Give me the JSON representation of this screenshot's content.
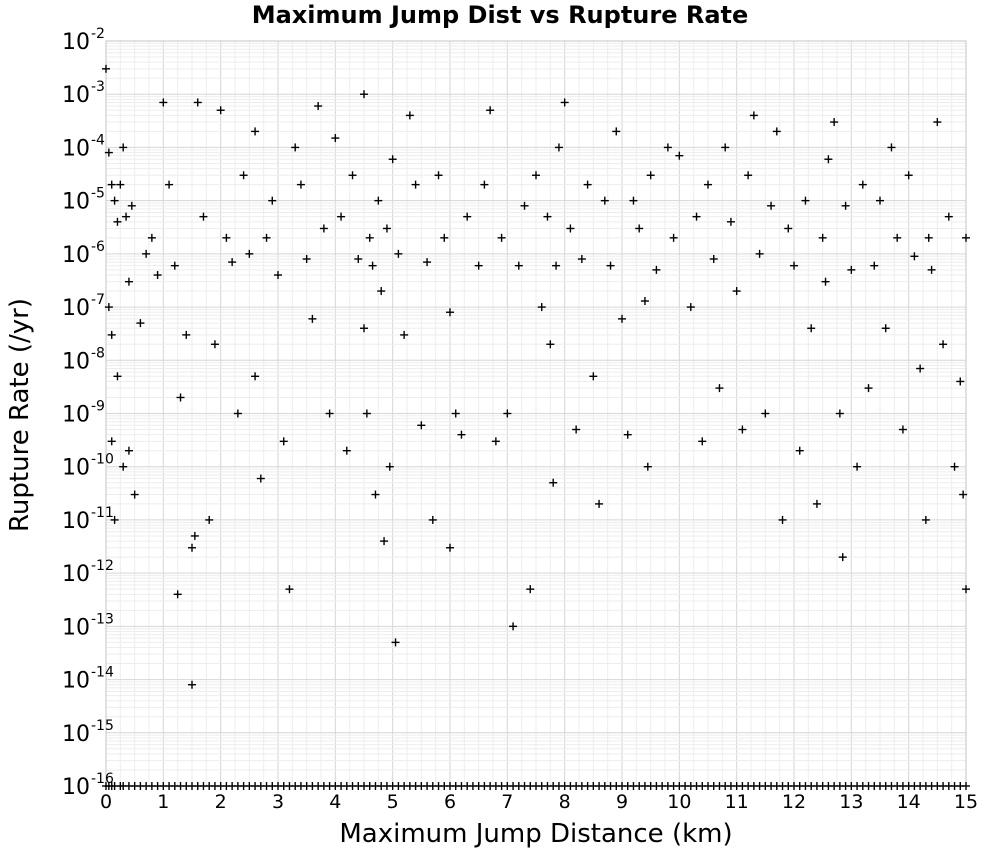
{
  "chart_data": {
    "type": "scatter",
    "title": "Maximum Jump Dist vs Rupture Rate",
    "xlabel": "Maximum Jump Distance (km)",
    "ylabel": "Rupture Rate (/yr)",
    "xlim": [
      0,
      15
    ],
    "ylim": [
      1e-16,
      0.01
    ],
    "x_scale": "linear",
    "y_scale": "log",
    "x_ticks": [
      0,
      1,
      2,
      3,
      4,
      5,
      6,
      7,
      8,
      9,
      10,
      11,
      12,
      13,
      14,
      15
    ],
    "y_ticks": [
      {
        "base": "10",
        "exp": "-16"
      },
      {
        "base": "10",
        "exp": "-15"
      },
      {
        "base": "10",
        "exp": "-14"
      },
      {
        "base": "10",
        "exp": "-13"
      },
      {
        "base": "10",
        "exp": "-12"
      },
      {
        "base": "10",
        "exp": "-11"
      },
      {
        "base": "10",
        "exp": "-10"
      },
      {
        "base": "10",
        "exp": "-9"
      },
      {
        "base": "10",
        "exp": "-8"
      },
      {
        "base": "10",
        "exp": "-7"
      },
      {
        "base": "10",
        "exp": "-6"
      },
      {
        "base": "10",
        "exp": "-5"
      },
      {
        "base": "10",
        "exp": "-4"
      },
      {
        "base": "10",
        "exp": "-3"
      },
      {
        "base": "10",
        "exp": "-2"
      }
    ],
    "grid": true,
    "marker": "+",
    "marker_color": "#000000",
    "series": [
      {
        "points": [
          [
            0.0,
            0.003
          ],
          [
            0.05,
            8e-05
          ],
          [
            0.1,
            2e-05
          ],
          [
            0.15,
            1e-05
          ],
          [
            0.2,
            4e-06
          ],
          [
            0.25,
            2e-05
          ],
          [
            0.3,
            0.0001
          ],
          [
            0.35,
            5e-06
          ],
          [
            0.4,
            3e-07
          ],
          [
            0.45,
            8e-06
          ],
          [
            0.05,
            1e-07
          ],
          [
            0.1,
            3e-08
          ],
          [
            0.2,
            5e-09
          ],
          [
            0.3,
            1e-10
          ],
          [
            0.1,
            3e-10
          ],
          [
            0.15,
            1e-11
          ],
          [
            0.4,
            2e-10
          ],
          [
            0.5,
            3e-11
          ],
          [
            0.6,
            5e-08
          ],
          [
            0.7,
            1e-06
          ],
          [
            0.8,
            2e-06
          ],
          [
            0.9,
            4e-07
          ],
          [
            1.0,
            0.0007
          ],
          [
            1.1,
            2e-05
          ],
          [
            1.2,
            6e-07
          ],
          [
            1.25,
            4e-13
          ],
          [
            1.3,
            2e-09
          ],
          [
            1.4,
            3e-08
          ],
          [
            1.5,
            8e-15
          ],
          [
            1.5,
            3e-12
          ],
          [
            1.55,
            5e-12
          ],
          [
            1.6,
            0.0007
          ],
          [
            1.7,
            5e-06
          ],
          [
            1.8,
            1e-11
          ],
          [
            1.9,
            2e-08
          ],
          [
            2.0,
            0.0005
          ],
          [
            2.1,
            2e-06
          ],
          [
            2.2,
            7e-07
          ],
          [
            2.3,
            1e-09
          ],
          [
            2.4,
            3e-05
          ],
          [
            2.5,
            1e-06
          ],
          [
            2.6,
            0.0002
          ],
          [
            2.6,
            5e-09
          ],
          [
            2.7,
            6e-11
          ],
          [
            2.8,
            2e-06
          ],
          [
            2.9,
            1e-05
          ],
          [
            3.0,
            4e-07
          ],
          [
            3.1,
            3e-10
          ],
          [
            3.2,
            5e-13
          ],
          [
            3.3,
            0.0001
          ],
          [
            3.4,
            2e-05
          ],
          [
            3.5,
            8e-07
          ],
          [
            3.6,
            6e-08
          ],
          [
            3.7,
            0.0006
          ],
          [
            3.8,
            3e-06
          ],
          [
            3.9,
            1e-09
          ],
          [
            4.0,
            0.00015
          ],
          [
            4.1,
            5e-06
          ],
          [
            4.2,
            2e-10
          ],
          [
            4.3,
            3e-05
          ],
          [
            4.4,
            8e-07
          ],
          [
            4.5,
            0.001
          ],
          [
            4.5,
            4e-08
          ],
          [
            4.55,
            1e-09
          ],
          [
            4.6,
            2e-06
          ],
          [
            4.65,
            6e-07
          ],
          [
            4.7,
            3e-11
          ],
          [
            4.75,
            1e-05
          ],
          [
            4.8,
            2e-07
          ],
          [
            4.85,
            4e-12
          ],
          [
            4.9,
            3e-06
          ],
          [
            4.95,
            1e-10
          ],
          [
            5.0,
            6e-05
          ],
          [
            5.05,
            5e-14
          ],
          [
            5.1,
            1e-06
          ],
          [
            5.2,
            3e-08
          ],
          [
            5.3,
            0.0004
          ],
          [
            5.4,
            2e-05
          ],
          [
            5.5,
            6e-10
          ],
          [
            5.6,
            7e-07
          ],
          [
            5.7,
            1e-11
          ],
          [
            5.8,
            3e-05
          ],
          [
            5.9,
            2e-06
          ],
          [
            6.0,
            8e-08
          ],
          [
            6.0,
            3e-12
          ],
          [
            6.1,
            1e-09
          ],
          [
            6.2,
            4e-10
          ],
          [
            6.3,
            5e-06
          ],
          [
            6.5,
            6e-07
          ],
          [
            6.6,
            2e-05
          ],
          [
            6.7,
            0.0005
          ],
          [
            6.8,
            3e-10
          ],
          [
            6.9,
            2e-06
          ],
          [
            7.0,
            1e-09
          ],
          [
            7.1,
            1e-13
          ],
          [
            7.2,
            6e-07
          ],
          [
            7.3,
            8e-06
          ],
          [
            7.4,
            5e-13
          ],
          [
            7.5,
            3e-05
          ],
          [
            7.6,
            1e-07
          ],
          [
            7.7,
            5e-06
          ],
          [
            7.75,
            2e-08
          ],
          [
            7.8,
            5e-11
          ],
          [
            7.85,
            6e-07
          ],
          [
            7.9,
            0.0001
          ],
          [
            8.0,
            0.0007
          ],
          [
            8.1,
            3e-06
          ],
          [
            8.2,
            5e-10
          ],
          [
            8.3,
            8e-07
          ],
          [
            8.4,
            2e-05
          ],
          [
            8.5,
            5e-09
          ],
          [
            8.6,
            2e-11
          ],
          [
            8.7,
            1e-05
          ],
          [
            8.8,
            6e-07
          ],
          [
            8.9,
            0.0002
          ],
          [
            9.0,
            6e-08
          ],
          [
            9.1,
            4e-10
          ],
          [
            9.2,
            1e-05
          ],
          [
            9.3,
            3e-06
          ],
          [
            9.4,
            1.3e-07
          ],
          [
            9.45,
            1e-10
          ],
          [
            9.5,
            3e-05
          ],
          [
            9.6,
            5e-07
          ],
          [
            9.8,
            0.0001
          ],
          [
            9.9,
            2e-06
          ],
          [
            10.0,
            7e-05
          ],
          [
            10.2,
            1e-07
          ],
          [
            10.3,
            5e-06
          ],
          [
            10.4,
            3e-10
          ],
          [
            10.5,
            2e-05
          ],
          [
            10.6,
            8e-07
          ],
          [
            10.7,
            3e-09
          ],
          [
            10.8,
            0.0001
          ],
          [
            10.9,
            4e-06
          ],
          [
            11.0,
            2e-07
          ],
          [
            11.1,
            5e-10
          ],
          [
            11.2,
            3e-05
          ],
          [
            11.3,
            0.0004
          ],
          [
            11.4,
            1e-06
          ],
          [
            11.5,
            1e-09
          ],
          [
            11.6,
            8e-06
          ],
          [
            11.7,
            0.0002
          ],
          [
            11.8,
            1e-11
          ],
          [
            11.9,
            3e-06
          ],
          [
            12.0,
            6e-07
          ],
          [
            12.1,
            2e-10
          ],
          [
            12.2,
            1e-05
          ],
          [
            12.3,
            4e-08
          ],
          [
            12.4,
            2e-11
          ],
          [
            12.5,
            2e-06
          ],
          [
            12.55,
            3e-07
          ],
          [
            12.6,
            6e-05
          ],
          [
            12.7,
            0.0003
          ],
          [
            12.8,
            1e-09
          ],
          [
            12.85,
            2e-12
          ],
          [
            12.9,
            8e-06
          ],
          [
            13.0,
            5e-07
          ],
          [
            13.1,
            1e-10
          ],
          [
            13.2,
            2e-05
          ],
          [
            13.3,
            3e-09
          ],
          [
            13.4,
            6e-07
          ],
          [
            13.5,
            1e-05
          ],
          [
            13.6,
            4e-08
          ],
          [
            13.7,
            0.0001
          ],
          [
            13.8,
            2e-06
          ],
          [
            13.9,
            5e-10
          ],
          [
            14.0,
            3e-05
          ],
          [
            14.1,
            9e-07
          ],
          [
            14.2,
            7e-09
          ],
          [
            14.3,
            1e-11
          ],
          [
            14.35,
            2e-06
          ],
          [
            14.4,
            5e-07
          ],
          [
            14.5,
            0.0003
          ],
          [
            14.6,
            2e-08
          ],
          [
            14.7,
            5e-06
          ],
          [
            14.8,
            1e-10
          ],
          [
            14.9,
            4e-09
          ],
          [
            15.0,
            5e-13
          ],
          [
            15.0,
            2e-06
          ],
          [
            14.95,
            3e-11
          ]
        ]
      }
    ],
    "baseline_points_value": 1e-16,
    "baseline_points_x": [
      0.0,
      0.05,
      0.1,
      0.15,
      0.25,
      0.3,
      0.4,
      0.5,
      0.6,
      0.7,
      0.8,
      0.9,
      1.0,
      1.1,
      1.2,
      1.3,
      1.4,
      1.5,
      1.6,
      1.7,
      1.8,
      1.9,
      2.0,
      2.1,
      2.2,
      2.3,
      2.4,
      2.5,
      2.6,
      2.7,
      2.8,
      2.9,
      3.0,
      3.1,
      3.2,
      3.3,
      3.4,
      3.5,
      3.6,
      3.7,
      3.8,
      3.9,
      4.0,
      4.1,
      4.2,
      4.3,
      4.4,
      4.5,
      4.6,
      4.7,
      4.8,
      4.9,
      5.0,
      5.1,
      5.2,
      5.3,
      5.4,
      5.5,
      5.6,
      5.7,
      5.8,
      5.9,
      6.0,
      6.1,
      6.2,
      6.3,
      6.4,
      6.5,
      6.6,
      6.7,
      6.8,
      6.9,
      7.0,
      7.1,
      7.2,
      7.3,
      7.4,
      7.5,
      7.6,
      7.7,
      7.8,
      7.9,
      8.0,
      8.1,
      8.2,
      8.3,
      8.4,
      8.5,
      8.6,
      8.7,
      8.8,
      8.9,
      9.0,
      9.1,
      9.2,
      9.3,
      9.4,
      9.5,
      9.6,
      9.7,
      9.8,
      9.9,
      10.0,
      10.1,
      10.2,
      10.3,
      10.4,
      10.5,
      10.6,
      10.7,
      10.8,
      10.9,
      11.0,
      11.1,
      11.2,
      11.3,
      11.4,
      11.5,
      11.6,
      11.7,
      11.8,
      11.9,
      12.0,
      12.1,
      12.2,
      12.3,
      12.4,
      12.5,
      12.6,
      12.7,
      12.8,
      12.9,
      13.0,
      13.1,
      13.2,
      13.3,
      13.4,
      13.5,
      13.6,
      13.7,
      13.8,
      13.9,
      14.0,
      14.1,
      14.2,
      14.3,
      14.4,
      14.5,
      14.6,
      14.7,
      14.8,
      14.9,
      15.0
    ]
  }
}
